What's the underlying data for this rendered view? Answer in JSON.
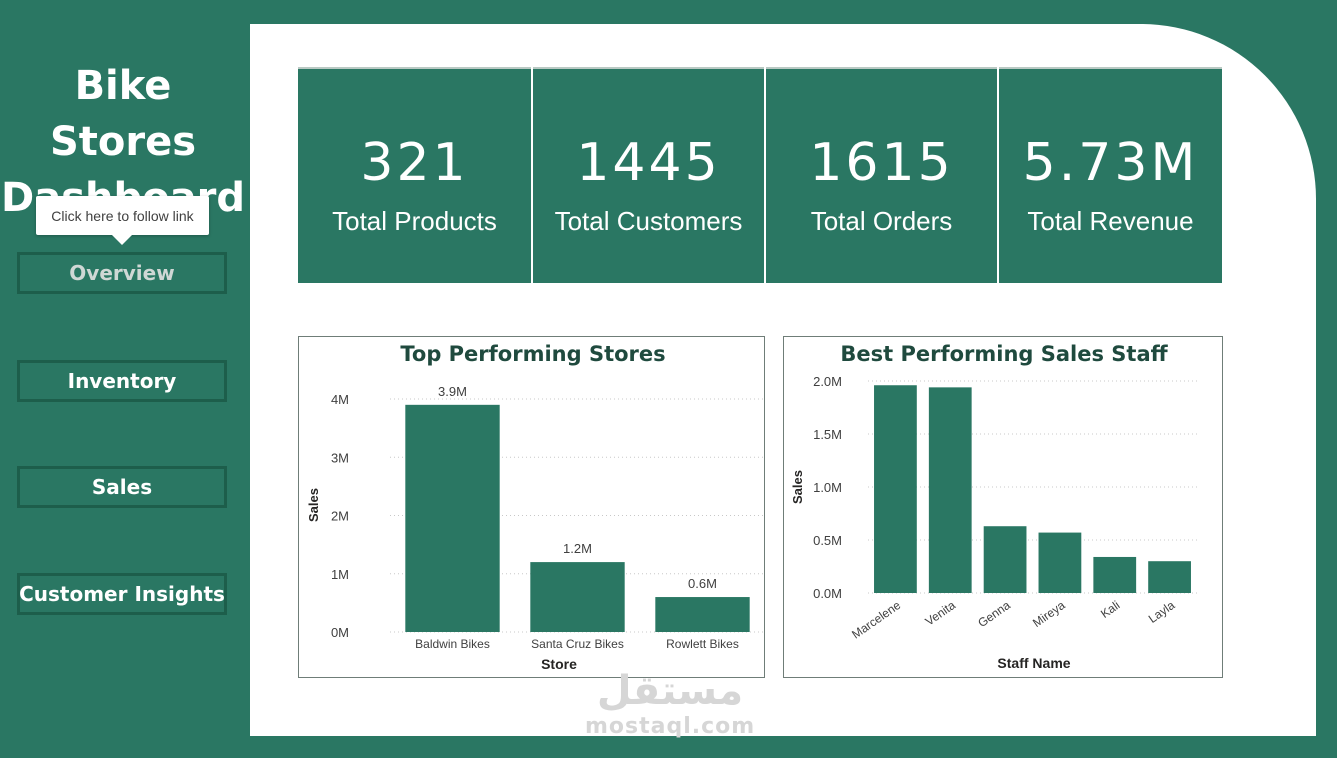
{
  "sidebar": {
    "title_line1": "Bike Stores",
    "title_line2": "Dashboard",
    "tooltip": "Click here to follow link",
    "nav": [
      {
        "label": "Overview"
      },
      {
        "label": "Inventory"
      },
      {
        "label": "Sales"
      },
      {
        "label": "Customer Insights"
      }
    ]
  },
  "kpis": [
    {
      "value": "321",
      "label": "Total Products"
    },
    {
      "value": "1445",
      "label": "Total Customers"
    },
    {
      "value": "1615",
      "label": "Total Orders"
    },
    {
      "value": "5.73M",
      "label": "Total Revenue"
    }
  ],
  "colors": {
    "background": "#2a7763",
    "panel": "#ffffff",
    "bar": "#2a7763",
    "button_border": "#1d5e4b"
  },
  "watermark": {
    "arabic": "مستقل",
    "latin": "mostaql.com"
  },
  "chart_data": [
    {
      "type": "bar",
      "title": "Top Performing Stores",
      "xlabel": "Store",
      "ylabel": "Sales",
      "categories": [
        "Baldwin Bikes",
        "Santa Cruz Bikes",
        "Rowlett Bikes"
      ],
      "values": [
        3.9,
        1.2,
        0.6
      ],
      "data_labels": [
        "3.9M",
        "1.2M",
        "0.6M"
      ],
      "ylim": [
        0,
        4
      ],
      "yticks": [
        0,
        1,
        2,
        3,
        4
      ],
      "ytick_labels": [
        "0M",
        "1M",
        "2M",
        "3M",
        "4M"
      ],
      "grid": true
    },
    {
      "type": "bar",
      "title": "Best Performing Sales Staff",
      "xlabel": "Staff Name",
      "ylabel": "Sales",
      "categories": [
        "Marcelene",
        "Venita",
        "Genna",
        "Mireya",
        "Kali",
        "Layla"
      ],
      "values": [
        1.96,
        1.94,
        0.63,
        0.57,
        0.34,
        0.3
      ],
      "ylim": [
        0,
        2
      ],
      "yticks": [
        0,
        0.5,
        1,
        1.5,
        2
      ],
      "ytick_labels": [
        "0.0M",
        "0.5M",
        "1.0M",
        "1.5M",
        "2.0M"
      ],
      "grid": true
    }
  ]
}
